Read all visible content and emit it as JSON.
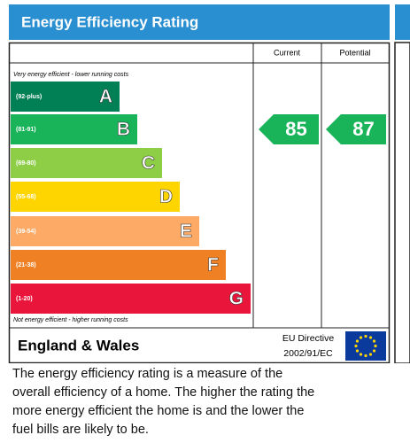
{
  "title": "Energy Efficiency Rating",
  "columns": [
    "Current",
    "Potential"
  ],
  "top_note": "Very energy efficient - lower running costs",
  "bottom_note": "Not energy efficient - higher running costs",
  "bands": [
    {
      "range": "(92-plus)",
      "letter": "A",
      "color": "#008054"
    },
    {
      "range": "(81-91)",
      "letter": "B",
      "color": "#19b459"
    },
    {
      "range": "(69-80)",
      "letter": "C",
      "color": "#8dce46"
    },
    {
      "range": "(55-68)",
      "letter": "D",
      "color": "#ffd500"
    },
    {
      "range": "(39-54)",
      "letter": "E",
      "color": "#fcaa65"
    },
    {
      "range": "(21-38)",
      "letter": "F",
      "color": "#ef8023"
    },
    {
      "range": "(1-20)",
      "letter": "G",
      "color": "#e9153b"
    }
  ],
  "current": {
    "value": 85,
    "band": "B"
  },
  "potential": {
    "value": 87,
    "band": "B"
  },
  "footer": {
    "region": "England & Wales",
    "directive": [
      "EU Directive",
      "2002/91/EC"
    ]
  },
  "description": [
    "The energy efficiency rating is a measure of the",
    "overall efficiency of a home. The higher the rating the",
    "more energy efficient the home is and the lower the",
    "fuel bills are likely to be."
  ]
}
